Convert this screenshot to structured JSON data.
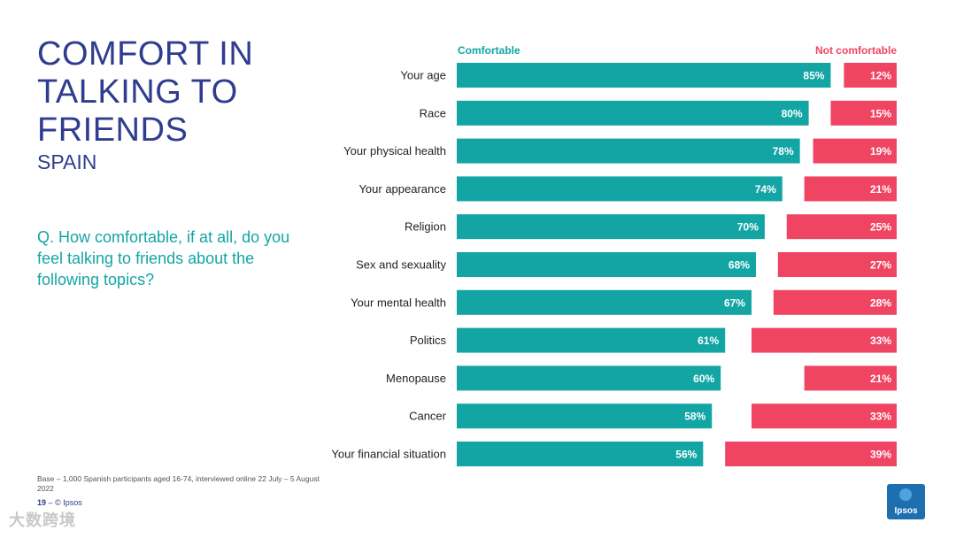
{
  "slide": {
    "title": "COMFORT IN TALKING TO FRIENDS",
    "subtitle": "SPAIN",
    "question": "Q. How comfortable, if at all, do you feel talking to friends about the following topics?",
    "base_note": "Base – 1,000 Spanish participants aged 16-74, interviewed online 22 July – 5 August 2022",
    "page_number": "19",
    "footer_sep": "–",
    "copyright": "© Ipsos",
    "logo_text": "Ipsos",
    "watermark": "大数跨境"
  },
  "chart_data": {
    "type": "bar",
    "orientation": "horizontal",
    "categories": [
      "Your age",
      "Race",
      "Your physical health",
      "Your appearance",
      "Religion",
      "Sex and sexuality",
      "Your mental health",
      "Politics",
      "Menopause",
      "Cancer",
      "Your financial situation"
    ],
    "series": [
      {
        "name": "Comfortable",
        "values": [
          85,
          80,
          78,
          74,
          70,
          68,
          67,
          61,
          60,
          58,
          56
        ],
        "color": "#12a5a4",
        "anchor": "left"
      },
      {
        "name": "Not comfortable",
        "values": [
          12,
          15,
          19,
          21,
          25,
          27,
          28,
          33,
          21,
          33,
          39
        ],
        "color": "#ef4562",
        "anchor": "right"
      }
    ],
    "value_suffix": "%",
    "xlim": [
      0,
      100
    ],
    "legend": "top",
    "grid": false
  }
}
